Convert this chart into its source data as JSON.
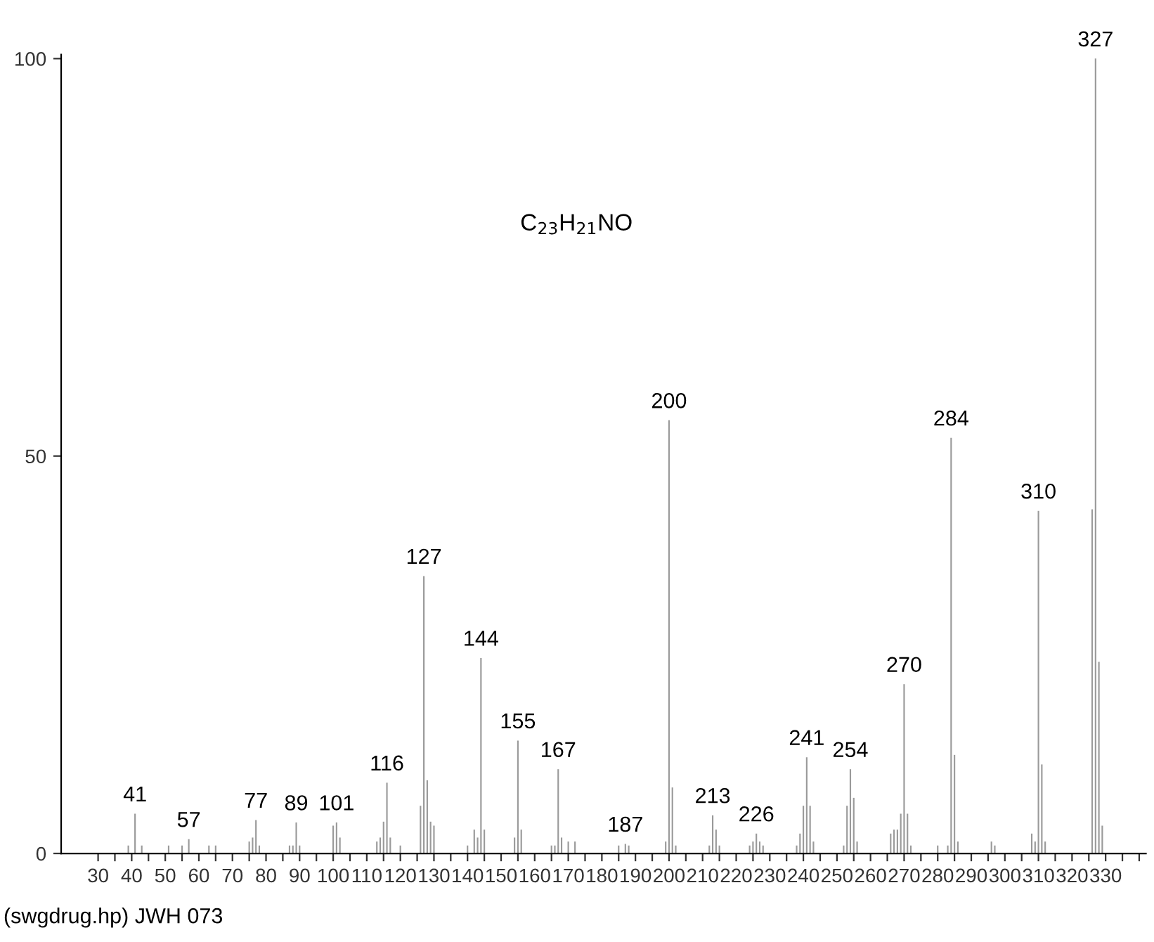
{
  "chart_data": {
    "type": "bar",
    "x": [
      39,
      41,
      43,
      51,
      55,
      57,
      63,
      65,
      75,
      76,
      77,
      78,
      87,
      88,
      89,
      90,
      100,
      101,
      102,
      113,
      114,
      115,
      116,
      117,
      120,
      126,
      127,
      128,
      129,
      130,
      140,
      142,
      143,
      144,
      145,
      154,
      155,
      156,
      165,
      166,
      167,
      168,
      170,
      172,
      185,
      187,
      188,
      199,
      200,
      201,
      202,
      212,
      213,
      214,
      215,
      224,
      225,
      226,
      227,
      228,
      238,
      239,
      240,
      241,
      242,
      243,
      252,
      253,
      254,
      255,
      256,
      266,
      267,
      268,
      269,
      270,
      271,
      272,
      280,
      283,
      284,
      285,
      286,
      296,
      297,
      308,
      309,
      310,
      311,
      312,
      326,
      327,
      328,
      329
    ],
    "values": [
      1,
      5,
      1,
      1,
      1,
      1.8,
      1,
      1,
      1.5,
      2,
      4.2,
      1,
      1,
      1,
      3.9,
      1,
      3.5,
      3.9,
      2,
      1.5,
      2,
      4,
      8.9,
      2,
      1,
      6,
      34.9,
      9.2,
      4,
      3.5,
      1,
      3,
      2,
      24.6,
      3,
      2,
      14.2,
      3,
      1,
      1,
      10.6,
      2,
      1.5,
      1.5,
      1,
      1.2,
      1,
      1.5,
      54.5,
      8.3,
      1,
      1,
      4.8,
      3,
      1,
      1,
      1.5,
      2.5,
      1.5,
      1,
      1,
      2.5,
      6,
      12.1,
      6,
      1.5,
      1,
      6,
      10.6,
      7,
      1.5,
      2.5,
      3,
      3,
      5,
      21.3,
      5,
      1,
      1,
      1,
      52.3,
      12.4,
      1.5,
      1.5,
      1,
      2.5,
      1.5,
      43.1,
      11.2,
      1.5,
      43.3,
      100,
      24.1,
      3.5
    ],
    "color": "#9a9a9a",
    "xlim": [
      19,
      342
    ],
    "ylim": [
      0,
      100.5
    ],
    "xticks": [
      30,
      {
        "value": 35,
        "label": null
      },
      40,
      {
        "value": 45,
        "label": null
      },
      50,
      {
        "value": 55,
        "label": null
      },
      60,
      {
        "value": 65,
        "label": null
      },
      70,
      {
        "value": 75,
        "label": null
      },
      80,
      {
        "value": 85,
        "label": null
      },
      90,
      {
        "value": 95,
        "label": null
      },
      100,
      {
        "value": 105,
        "label": null
      },
      110,
      {
        "value": 115,
        "label": null
      },
      120,
      {
        "value": 125,
        "label": null
      },
      130,
      {
        "value": 135,
        "label": null
      },
      140,
      {
        "value": 145,
        "label": null
      },
      150,
      {
        "value": 155,
        "label": null
      },
      160,
      {
        "value": 165,
        "label": null
      },
      170,
      {
        "value": 175,
        "label": null
      },
      180,
      {
        "value": 185,
        "label": null
      },
      190,
      {
        "value": 195,
        "label": null
      },
      200,
      {
        "value": 205,
        "label": null
      },
      210,
      {
        "value": 215,
        "label": null
      },
      220,
      {
        "value": 225,
        "label": null
      },
      230,
      {
        "value": 235,
        "label": null
      },
      240,
      {
        "value": 245,
        "label": null
      },
      250,
      {
        "value": 255,
        "label": null
      },
      260,
      {
        "value": 265,
        "label": null
      },
      270,
      {
        "value": 275,
        "label": null
      },
      280,
      {
        "value": 285,
        "label": null
      },
      290,
      {
        "value": 295,
        "label": null
      },
      300,
      {
        "value": 305,
        "label": null
      },
      310,
      {
        "value": 315,
        "label": null
      },
      320,
      {
        "value": 325,
        "label": null
      },
      330,
      {
        "value": 335,
        "label": null
      },
      {
        "value": 340,
        "label": null
      }
    ],
    "yticks": [
      0,
      50,
      100
    ],
    "grid": false,
    "annotations": [
      {
        "text": "41",
        "x": 41,
        "y": 5
      },
      {
        "text": "57",
        "x": 57,
        "y": 1.8
      },
      {
        "text": "77",
        "x": 77,
        "y": 4.2
      },
      {
        "text": "89",
        "x": 89,
        "y": 3.9
      },
      {
        "text": "101",
        "x": 101,
        "y": 3.9
      },
      {
        "text": "116",
        "x": 116,
        "y": 8.9
      },
      {
        "text": "127",
        "x": 127,
        "y": 34.9
      },
      {
        "text": "144",
        "x": 144,
        "y": 24.6
      },
      {
        "text": "155",
        "x": 155,
        "y": 14.2
      },
      {
        "text": "167",
        "x": 167,
        "y": 10.6
      },
      {
        "text": "187",
        "x": 187,
        "y": 1.2
      },
      {
        "text": "200",
        "x": 200,
        "y": 54.5
      },
      {
        "text": "213",
        "x": 213,
        "y": 4.8
      },
      {
        "text": "226",
        "x": 226,
        "y": 2.5
      },
      {
        "text": "241",
        "x": 241,
        "y": 12.1
      },
      {
        "text": "254",
        "x": 254,
        "y": 10.6
      },
      {
        "text": "270",
        "x": 270,
        "y": 21.3
      },
      {
        "text": "284",
        "x": 284,
        "y": 52.3
      },
      {
        "text": "310",
        "x": 310,
        "y": 43.1
      },
      {
        "text": "327",
        "x": 327,
        "y": 100
      },
      "C$_{23}$H$_{21}$NO",
      "(swgdrug.hp) JWH 073"
    ]
  }
}
